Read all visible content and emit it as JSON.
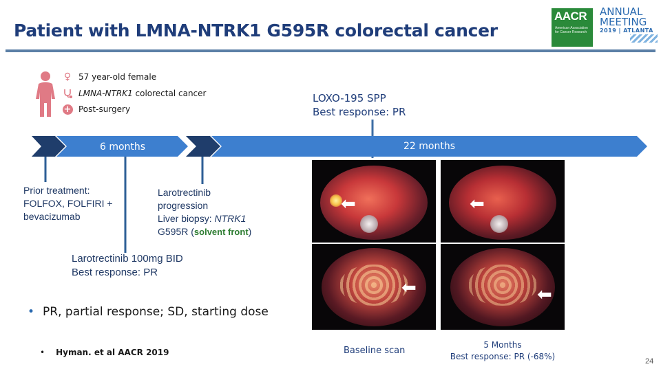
{
  "slide": {
    "title": "Patient with LMNA-NTRK1 G595R colorectal cancer",
    "page_number": "24"
  },
  "logo": {
    "org_short": "AACR",
    "org_full": "American Association for Cancer Research",
    "event_line1": "ANNUAL",
    "event_line2": "MEETING",
    "event_line3": "2019 | ATLANTA"
  },
  "patient": {
    "age_sex": "57 year-old female",
    "diagnosis_gene": "LMNA-NTRK1",
    "diagnosis_rest": " colorectal cancer",
    "status": "Post-surgery"
  },
  "timeline": {
    "phase1_label": "6 months",
    "phase2_label": "22 months"
  },
  "annotations": {
    "loxo_line1": "LOXO-195 SPP",
    "loxo_line2": "Best response: PR",
    "prior_line1": "Prior treatment:",
    "prior_line2": "FOLFOX, FOLFIRI +",
    "prior_line3": "bevacizumab",
    "prog_line1": "Larotrectinib",
    "prog_line2": "progression",
    "prog_line3_prefix": "Liver biopsy: ",
    "prog_line3_gene": "NTRK1",
    "prog_line4_prefix": "G595R (",
    "prog_line4_highlight": "solvent front",
    "prog_line4_suffix": ")",
    "dose_line1": "Larotrectinib 100mg BID",
    "dose_line2": "Best response: PR"
  },
  "notes": {
    "abbreviations": "PR, partial response; SD, starting dose",
    "citation": "Hyman. et al AACR 2019"
  },
  "scans": {
    "baseline_caption": "Baseline scan",
    "followup_caption_line1": "5 Months",
    "followup_caption_line2": "Best response: PR (-68%)"
  },
  "colors": {
    "timeline_dark": "#1f3d6b",
    "timeline_light": "#3d7fcf",
    "accent_pink": "#e07a85",
    "highlight_green": "#2e7d32"
  }
}
